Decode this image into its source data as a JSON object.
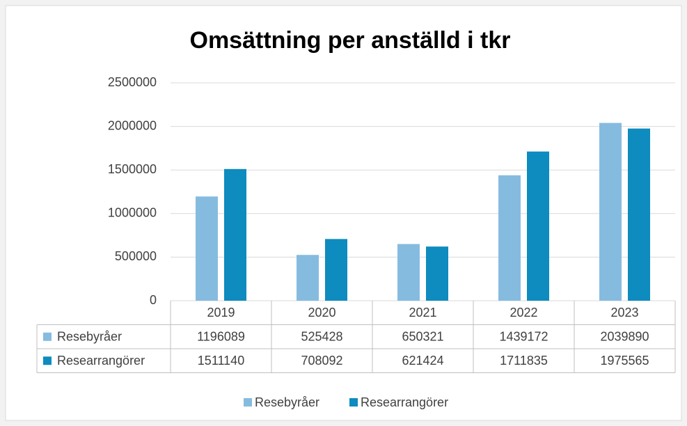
{
  "chart_data": {
    "type": "bar",
    "title": "Omsättning per anställd i tkr",
    "categories": [
      "2019",
      "2020",
      "2021",
      "2022",
      "2023"
    ],
    "series": [
      {
        "name": "Resebyråer",
        "color": "#86bbe0",
        "values": [
          1196089,
          525428,
          650321,
          1439172,
          2039890
        ]
      },
      {
        "name": "Researrangörer",
        "color": "#0e8bbf",
        "values": [
          1511140,
          708092,
          621424,
          1711835,
          1975565
        ]
      }
    ],
    "ylim": [
      0,
      2500000
    ],
    "yticks": [
      0,
      500000,
      1000000,
      1500000,
      2000000,
      2500000
    ],
    "grid": true,
    "data_table": true,
    "legend": "bottom"
  }
}
